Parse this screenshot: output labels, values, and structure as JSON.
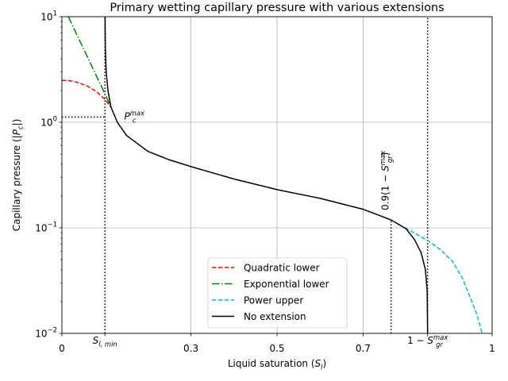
{
  "chart_data": {
    "type": "line",
    "title": "Primary wetting capillary pressure with various extensions",
    "xlabel": {
      "text": "Liquid saturation (",
      "sym": "S",
      "sub": "l",
      "end": ")"
    },
    "ylabel": {
      "text": "Capillary pressure (|",
      "sym": "P",
      "sub": "c",
      "end": "|)"
    },
    "xlim": [
      0,
      1
    ],
    "ylim": [
      0.01,
      10
    ],
    "yscale": "log",
    "grid": true,
    "legend_position": "lower-center",
    "x_ticks": [
      {
        "value": 0,
        "label": "0"
      },
      {
        "value": 0.1,
        "label": "",
        "sym": "S",
        "sub": "l, min"
      },
      {
        "value": 0.3,
        "label": "0.3"
      },
      {
        "value": 0.5,
        "label": "0.5"
      },
      {
        "value": 0.7,
        "label": "0.7"
      },
      {
        "value": 0.85,
        "label": "1 − ",
        "sym": "S",
        "sub": "gr",
        "sup": "max"
      },
      {
        "value": 1,
        "label": "1"
      }
    ],
    "y_ticks": [
      {
        "value": 0.01,
        "base": "10",
        "exp": "−2"
      },
      {
        "value": 0.1,
        "base": "10",
        "exp": "−1"
      },
      {
        "value": 1,
        "base": "10",
        "exp": "0"
      },
      {
        "value": 10,
        "base": "10",
        "exp": "1"
      }
    ],
    "reference_lines": [
      {
        "kind": "vertical",
        "x": 0.1,
        "y_to": 10
      },
      {
        "kind": "vertical",
        "x": 0.765,
        "y_to": 0.119
      },
      {
        "kind": "vertical",
        "x": 0.85,
        "y_to": 10
      },
      {
        "kind": "horizontal",
        "y": 1.12,
        "x_to": 0.1
      }
    ],
    "annotations": [
      {
        "id": "pcmax",
        "sym": "P",
        "sub": "c",
        "sup": "max",
        "x": 0.13,
        "y": 1.12
      },
      {
        "id": "sgr09",
        "text": "0.9(1 − ",
        "sym": "S",
        "sub": "gr",
        "sup": "max",
        "end": ")",
        "x": 0.765,
        "y": 0.119,
        "rotation": "vertical"
      }
    ],
    "series": [
      {
        "name": "Quadratic lower",
        "color": "#ff0000",
        "style": "dashed",
        "x": [
          0,
          0.02,
          0.04,
          0.06,
          0.08,
          0.1,
          0.114
        ],
        "y": [
          2.5,
          2.47,
          2.36,
          2.19,
          1.95,
          1.65,
          1.39
        ]
      },
      {
        "name": "Exponential lower",
        "color": "#008000",
        "style": "dashdot",
        "x": [
          0.015,
          0.04,
          0.06,
          0.08,
          0.1,
          0.114
        ],
        "y": [
          10,
          6.07,
          4.1,
          2.76,
          1.86,
          1.39
        ]
      },
      {
        "name": "Power upper",
        "color": "#00bfbf",
        "style": "dashed",
        "x": [
          0.797,
          0.82,
          0.85,
          0.88,
          0.908,
          0.93,
          0.951,
          0.965,
          0.977
        ],
        "y": [
          0.1,
          0.089,
          0.076,
          0.062,
          0.048,
          0.034,
          0.021,
          0.015,
          0.01
        ]
      },
      {
        "name": "No extension",
        "color": "#000000",
        "style": "solid",
        "x": [
          0.1003,
          0.101,
          0.103,
          0.107,
          0.114,
          0.129,
          0.15,
          0.2,
          0.25,
          0.3,
          0.4,
          0.5,
          0.6,
          0.7,
          0.765,
          0.8,
          0.82,
          0.835,
          0.845,
          0.849,
          0.85
        ],
        "y": [
          10,
          5,
          3,
          2,
          1.39,
          1.0,
          0.75,
          0.53,
          0.44,
          0.38,
          0.29,
          0.23,
          0.19,
          0.15,
          0.119,
          0.098,
          0.077,
          0.058,
          0.04,
          0.025,
          0.01
        ]
      }
    ]
  }
}
